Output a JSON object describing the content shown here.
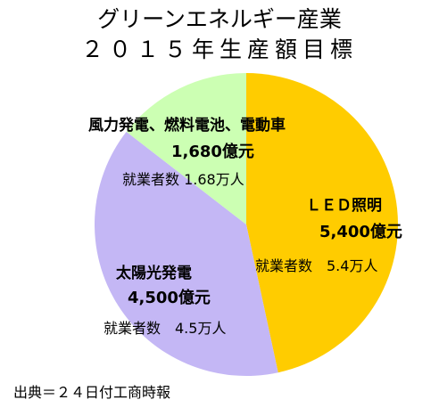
{
  "chart_data": {
    "type": "pie",
    "title": "グリーンエネルギー産業",
    "subtitle": "２０１５年生産額目標",
    "unit": "億元",
    "colors": [
      "#FFCC00",
      "#C4B7F5",
      "#CCFFB3"
    ],
    "slices": [
      {
        "name": "ＬＥＤ照明",
        "value": 5400,
        "amount_label": "5,400億元",
        "jobs_label": "就業者数　5.4万人"
      },
      {
        "name": "太陽光発電",
        "value": 4500,
        "amount_label": "4,500億元",
        "jobs_label": "就業者数　4.5万人"
      },
      {
        "name": "風力発電、燃料電池、電動車",
        "value": 1680,
        "amount_label": "1,680億元",
        "jobs_label": "就業者数 1.68万人"
      }
    ]
  },
  "source": "出典＝２４日付工商時報"
}
